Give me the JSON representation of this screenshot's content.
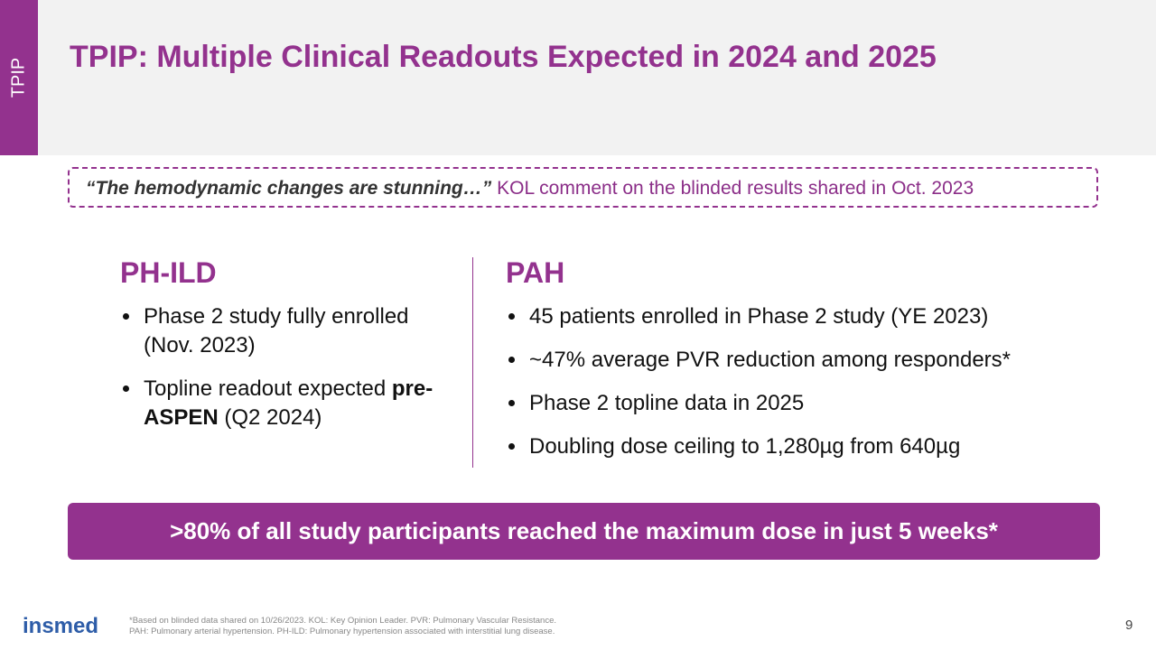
{
  "sidebar": {
    "label": "TPIP"
  },
  "header": {
    "title": "TPIP: Multiple Clinical Readouts Expected in 2024 and 2025"
  },
  "quote": {
    "emphasis": "“The hemodynamic changes are stunning…”",
    "rest": "KOL comment on the blinded results shared in Oct. 2023"
  },
  "columns": [
    {
      "heading": "PH-ILD",
      "bullets": [
        {
          "text": "Phase 2 study fully enrolled (Nov. 2023)"
        },
        {
          "before": "Topline readout expected",
          "bold": "pre-ASPEN",
          "after": "(Q2 2024)"
        }
      ]
    },
    {
      "heading": "PAH",
      "bullets": [
        {
          "text": "45 patients enrolled in Phase 2 study (YE 2023)"
        },
        {
          "text": "~47% average PVR reduction among responders*"
        },
        {
          "text": "Phase 2 topline data in 2025"
        },
        {
          "text": "Doubling dose ceiling to 1,280µg from 640µg"
        }
      ]
    }
  ],
  "banner": {
    "text": ">80% of all study participants reached the maximum dose in just 5 weeks*"
  },
  "footer": {
    "logo": "insmed",
    "notes": [
      "*Based on blinded data shared on 10/26/2023. KOL: Key Opinion Leader. PVR: Pulmonary Vascular Resistance.",
      "PAH: Pulmonary arterial hypertension. PH-ILD: Pulmonary hypertension associated with interstitial lung disease."
    ],
    "page": "9"
  }
}
